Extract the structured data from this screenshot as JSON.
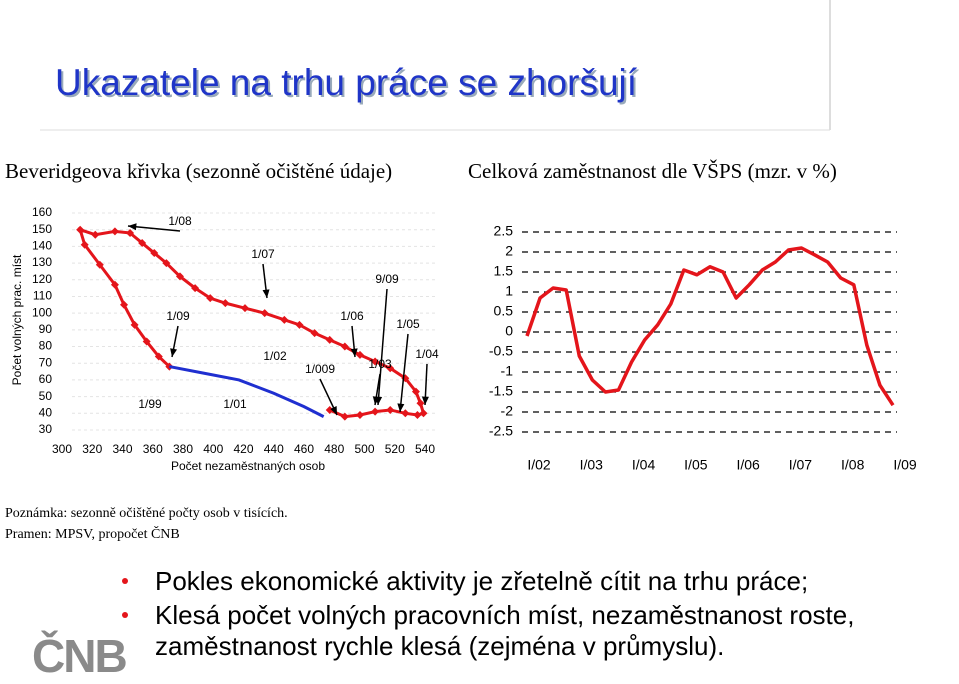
{
  "title": "Ukazatele na trhu práce se zhoršují",
  "logo": "ČNB",
  "notes": [
    "Poznámka: sezonně očištěné počty osob v tisících.",
    "Pramen: MPSV, propočet ČNB"
  ],
  "bullets": [
    "Pokles ekonomické aktivity je zřetelně cítit na trhu práce;",
    "Klesá počet volných pracovních míst, nezaměstnanost roste, zaměstnanost rychle klesá (zejména v průmyslu)."
  ],
  "chart_data": [
    {
      "type": "line",
      "title": "Beveridgeova křivka (sezonně očištěné údaje)",
      "xlabel": "Počet nezaměstnaných osob",
      "ylabel": "Počet volných prac. míst",
      "xlim": [
        300,
        540
      ],
      "xticks": [
        300,
        320,
        340,
        360,
        380,
        400,
        420,
        440,
        460,
        480,
        500,
        520,
        540
      ],
      "ylim": [
        30,
        160
      ],
      "yticks": [
        160,
        150,
        140,
        130,
        120,
        110,
        100,
        90,
        80,
        70,
        60,
        50,
        40,
        30
      ],
      "grid": true,
      "series": [
        {
          "color": "#e4151b",
          "marker": "diamond",
          "x": [
            477,
            487,
            497,
            507,
            517,
            527,
            535,
            539,
            537,
            534,
            527,
            517,
            507,
            497,
            487,
            477,
            467,
            457,
            447,
            434,
            421,
            408,
            398,
            388,
            378,
            369,
            361,
            353,
            345,
            335,
            322,
            312,
            315,
            325,
            335,
            341,
            348,
            356,
            364,
            371
          ],
          "values": [
            42,
            38,
            39,
            41,
            42,
            40,
            39,
            40,
            46,
            53,
            61,
            67,
            71,
            75,
            80,
            84,
            88,
            93,
            96,
            100,
            103,
            106,
            109,
            115,
            122,
            130,
            136,
            142,
            148,
            149,
            147,
            150,
            141,
            129,
            117,
            105,
            93,
            83,
            74,
            68
          ]
        },
        {
          "color": "#1f2fd0",
          "x": [
            371,
            394,
            417,
            440,
            460,
            473
          ],
          "values": [
            68,
            64,
            60,
            52,
            44,
            38
          ]
        }
      ],
      "annotations": [
        "1/08",
        "1/07",
        "9/09",
        "1/09",
        "1/06",
        "1/05",
        "1/02",
        "1/03",
        "1/04",
        "1/009",
        "1/99",
        "1/01"
      ]
    },
    {
      "type": "line",
      "title": "Celková zaměstnanost dle VŠPS (mzr. v %)",
      "categories": [
        "I/02",
        null,
        null,
        null,
        "I/03",
        null,
        null,
        null,
        "I/04",
        null,
        null,
        null,
        "I/05",
        null,
        null,
        null,
        "I/06",
        null,
        null,
        null,
        "I/07",
        null,
        null,
        null,
        "I/08",
        null,
        null,
        null,
        "I/09"
      ],
      "ylim": [
        -2.5,
        2.5
      ],
      "yticks": [
        2.5,
        2,
        1.5,
        1,
        0.5,
        0,
        -0.5,
        -1,
        -1.5,
        -2,
        -2.5
      ],
      "grid": true,
      "grid_style": "dashed",
      "series": [
        {
          "color": "#e4151b",
          "values": [
            -0.1,
            0.85,
            1.1,
            1.05,
            -0.6,
            -1.2,
            -1.5,
            -1.45,
            -0.75,
            -0.2,
            0.18,
            0.7,
            1.55,
            1.43,
            1.63,
            1.5,
            0.85,
            1.18,
            1.55,
            1.75,
            2.05,
            2.1,
            1.93,
            1.75,
            1.35,
            1.18,
            -0.33,
            -1.33,
            -1.83
          ]
        }
      ]
    }
  ]
}
